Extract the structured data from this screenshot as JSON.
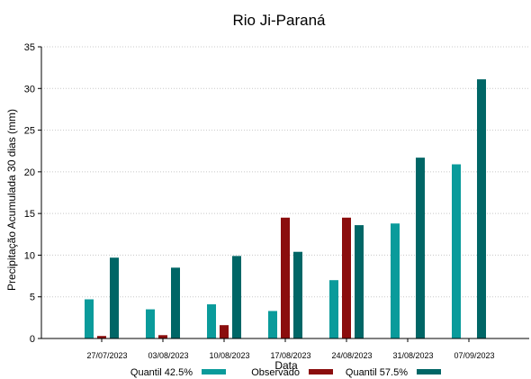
{
  "chart_data": {
    "type": "bar",
    "title": "Rio Ji-Paraná",
    "xlabel": "Data",
    "ylabel": "Precipitação Acumulada 30 dias (mm)",
    "ylim": [
      0,
      35
    ],
    "yticks": [
      0,
      5,
      10,
      15,
      20,
      25,
      30,
      35
    ],
    "grid": "y",
    "legend_position": "bottom",
    "categories": [
      "27/07/2023",
      "03/08/2023",
      "10/08/2023",
      "17/08/2023",
      "24/08/2023",
      "31/08/2023",
      "07/09/2023"
    ],
    "series": [
      {
        "name": "Quantil 42.5%",
        "color": "#0a9b9b",
        "values": [
          4.7,
          3.5,
          4.1,
          3.3,
          7.0,
          13.8,
          20.9
        ]
      },
      {
        "name": "Observado",
        "color": "#8b0d0d",
        "values": [
          0.3,
          0.4,
          1.6,
          14.5,
          14.5,
          null,
          null
        ]
      },
      {
        "name": "Quantil 57.5%",
        "color": "#006666",
        "values": [
          9.7,
          8.5,
          9.9,
          10.4,
          13.6,
          21.7,
          31.1
        ]
      }
    ]
  }
}
